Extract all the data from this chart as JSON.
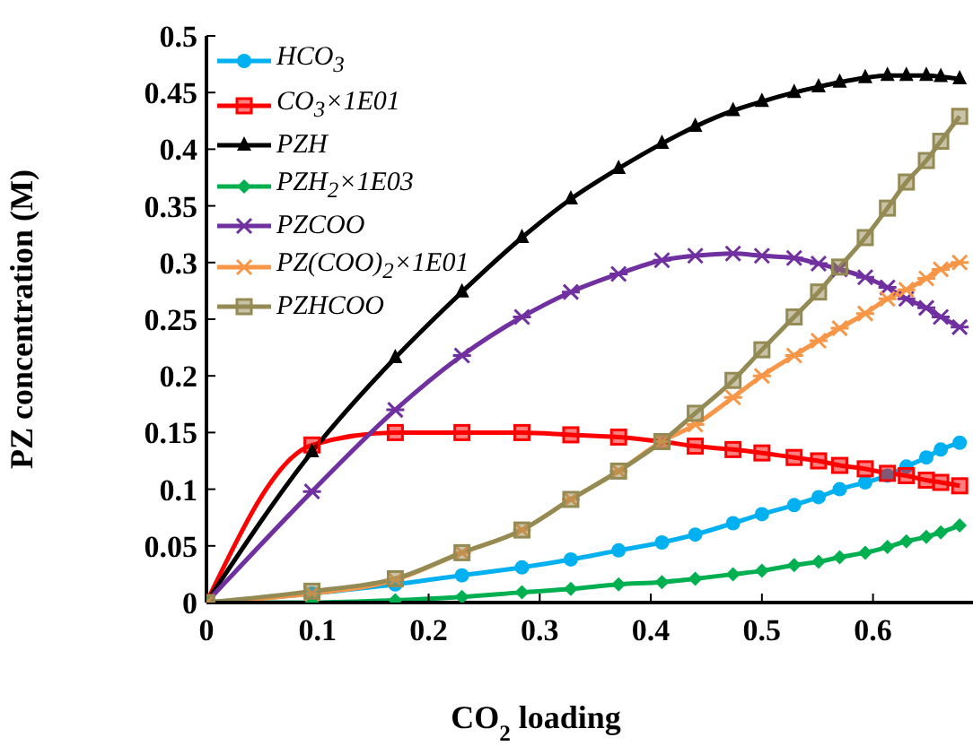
{
  "chart_data": {
    "type": "line",
    "xlabel": "CO$_{2}$ loading",
    "ylabel": "PZ concentration (M)",
    "x": [
      0,
      0.095,
      0.17,
      0.23,
      0.284,
      0.328,
      0.371,
      0.41,
      0.44,
      0.474,
      0.5,
      0.529,
      0.551,
      0.57,
      0.593,
      0.613,
      0.63,
      0.648,
      0.661,
      0.678
    ],
    "xlim": [
      0,
      0.69
    ],
    "xticks": [
      0,
      0.1,
      0.2,
      0.3,
      0.4,
      0.5,
      0.6
    ],
    "ylim": [
      0,
      0.5
    ],
    "yticks": [
      0,
      0.05,
      0.1,
      0.15,
      0.2,
      0.25,
      0.3,
      0.35,
      0.4,
      0.45,
      0.5
    ],
    "grid": false,
    "legend": "top left",
    "line_style": "solid",
    "series": [
      {
        "name": "HCO$_{3}$",
        "color": "#00b0f0",
        "marker": "circle",
        "values": [
          0,
          0.008,
          0.016,
          0.024,
          0.031,
          0.038,
          0.046,
          0.053,
          0.06,
          0.07,
          0.078,
          0.086,
          0.093,
          0.1,
          0.106,
          0.112,
          0.12,
          0.128,
          0.135,
          0.141
        ]
      },
      {
        "name": "CO$_{3}$×1E01",
        "color": "#ff0000",
        "marker": "square",
        "values": [
          0,
          0.139,
          0.15,
          0.15,
          0.15,
          0.148,
          0.146,
          0.142,
          0.138,
          0.135,
          0.132,
          0.128,
          0.125,
          0.121,
          0.118,
          0.114,
          0.112,
          0.108,
          0.106,
          0.103
        ]
      },
      {
        "name": "PZH",
        "color": "#000000",
        "marker": "triangle",
        "values": [
          0,
          0.133,
          0.216,
          0.274,
          0.322,
          0.356,
          0.383,
          0.405,
          0.42,
          0.434,
          0.442,
          0.45,
          0.455,
          0.459,
          0.463,
          0.465,
          0.465,
          0.465,
          0.464,
          0.462
        ]
      },
      {
        "name": "PZH$_{2}$×1E03",
        "color": "#00b050",
        "marker": "diamond",
        "values": [
          0,
          0,
          0.002,
          0.005,
          0.009,
          0.012,
          0.016,
          0.018,
          0.021,
          0.025,
          0.028,
          0.033,
          0.036,
          0.04,
          0.044,
          0.049,
          0.054,
          0.058,
          0.062,
          0.068
        ]
      },
      {
        "name": "PZCOO",
        "color": "#7030a0",
        "marker": "cross",
        "values": [
          0,
          0.098,
          0.17,
          0.218,
          0.252,
          0.274,
          0.29,
          0.302,
          0.306,
          0.308,
          0.306,
          0.304,
          0.299,
          0.294,
          0.287,
          0.278,
          0.268,
          0.26,
          0.252,
          0.243
        ]
      },
      {
        "name": "PZ(COO)$_{2}$×1E01",
        "color": "#f79646",
        "marker": "cross",
        "values": [
          0,
          0.008,
          0.02,
          0.044,
          0.064,
          0.091,
          0.116,
          0.142,
          0.157,
          0.181,
          0.2,
          0.218,
          0.231,
          0.242,
          0.255,
          0.268,
          0.276,
          0.286,
          0.294,
          0.3
        ]
      },
      {
        "name": "PZHCOO",
        "color": "#948a54",
        "marker": "square",
        "values": [
          0,
          0.01,
          0.021,
          0.044,
          0.064,
          0.091,
          0.116,
          0.142,
          0.167,
          0.196,
          0.223,
          0.252,
          0.274,
          0.296,
          0.322,
          0.348,
          0.371,
          0.39,
          0.407,
          0.429
        ]
      }
    ]
  }
}
